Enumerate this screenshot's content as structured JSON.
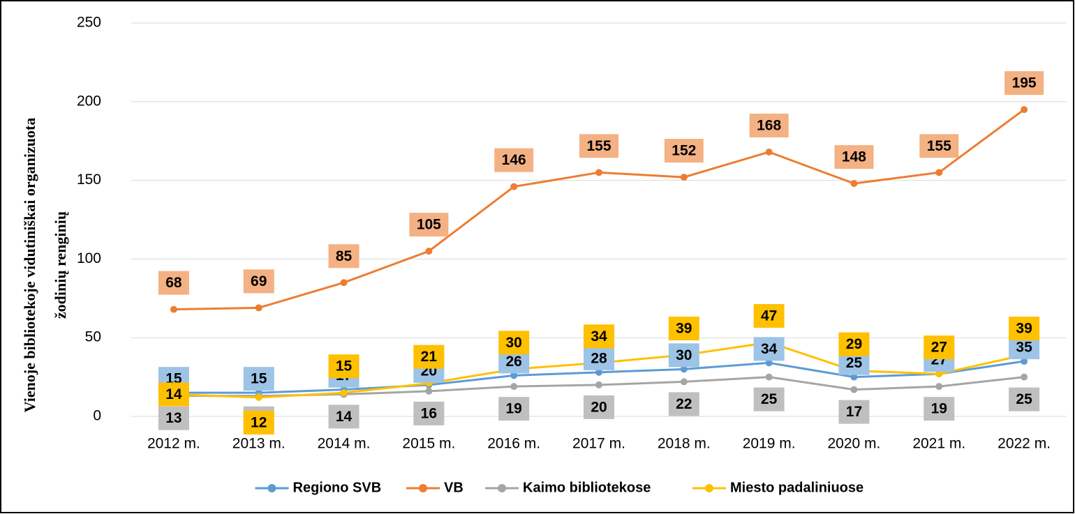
{
  "chart_data": {
    "type": "line",
    "ylabel": [
      "Vienoje bibliotekoje vidutiniškai organizuota",
      "žodinių renginių"
    ],
    "categories": [
      "2012 m.",
      "2013 m.",
      "2014 m.",
      "2015 m.",
      "2016 m.",
      "2017 m.",
      "2018 m.",
      "2019 m.",
      "2020 m.",
      "2021 m.",
      "2022 m."
    ],
    "series": [
      {
        "name": "Regiono SVB",
        "color": "#5b9bd5",
        "label_color": "#9dc3e6",
        "values": [
          15,
          15,
          17,
          20,
          26,
          28,
          30,
          34,
          25,
          27,
          35
        ]
      },
      {
        "name": "VB",
        "color": "#ed7d31",
        "label_color": "#f4b183",
        "values": [
          68,
          69,
          85,
          105,
          146,
          155,
          152,
          168,
          148,
          155,
          195
        ]
      },
      {
        "name": "Kaimo bibliotekose",
        "color": "#a5a5a5",
        "label_color": "#bfbfbf",
        "values": [
          13,
          13,
          14,
          16,
          19,
          20,
          22,
          25,
          17,
          19,
          25
        ]
      },
      {
        "name": "Miesto padaliniuose",
        "color": "#ffc000",
        "label_color": "#ffc000",
        "values": [
          14,
          12,
          15,
          21,
          30,
          34,
          39,
          47,
          29,
          27,
          39
        ]
      }
    ],
    "ylim": [
      0,
      250
    ],
    "yticks": [
      0,
      50,
      100,
      150,
      200,
      250
    ],
    "grid": true,
    "legend": "bottom"
  }
}
